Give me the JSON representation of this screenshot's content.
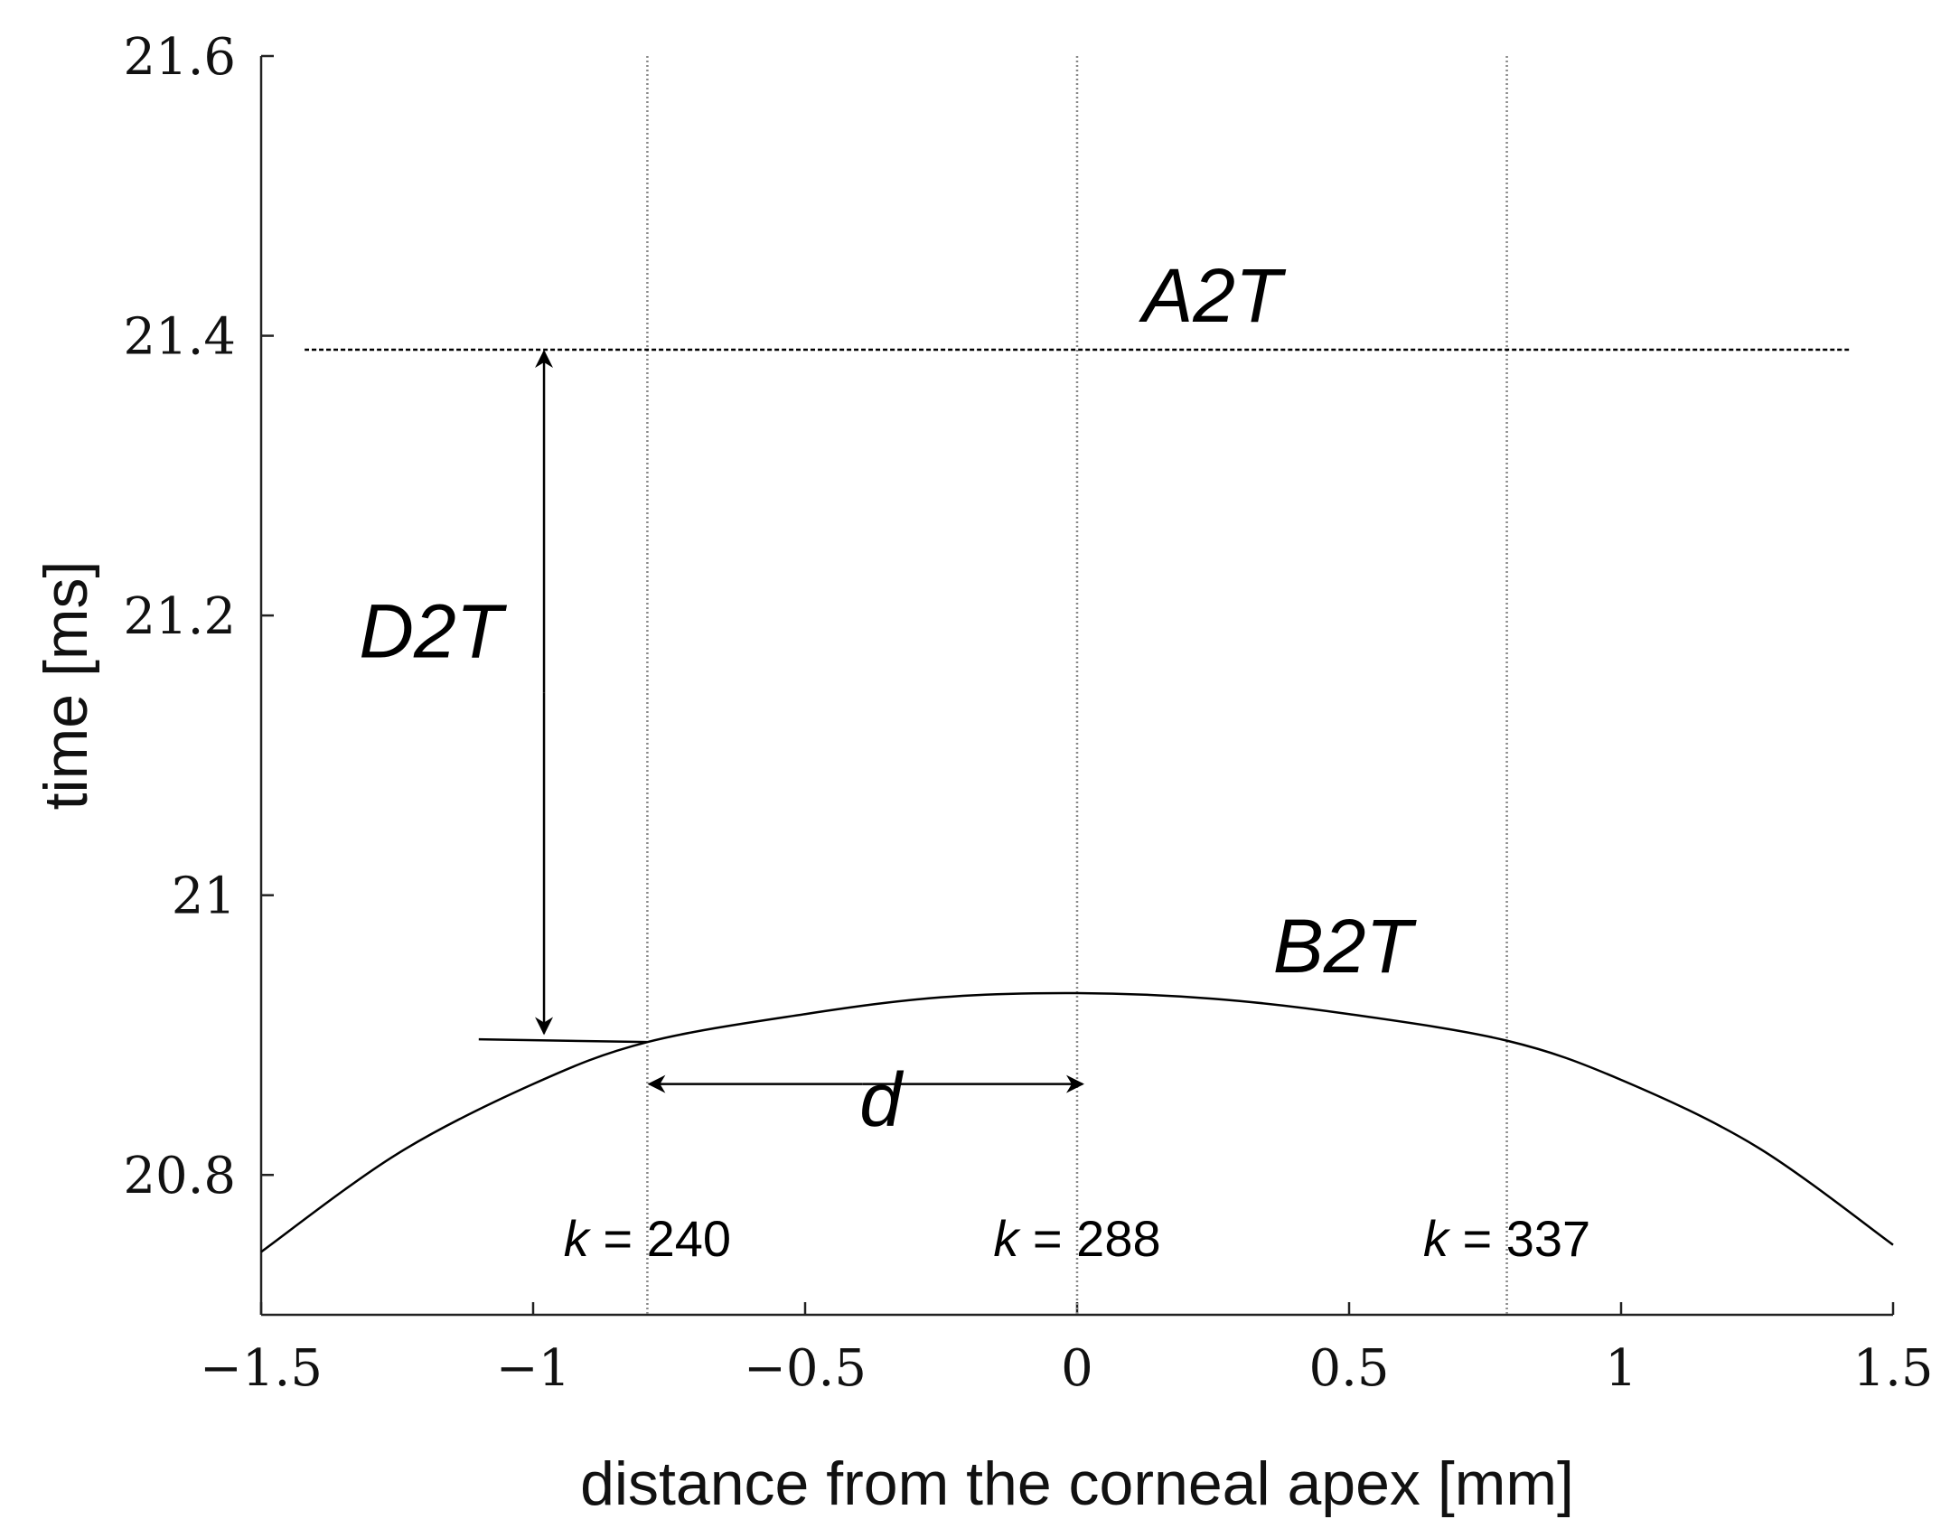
{
  "chart_data": {
    "type": "line",
    "title": "",
    "xlabel": "distance from the corneal apex [mm]",
    "ylabel": "time [ms]",
    "xlim": [
      -1.5,
      1.5
    ],
    "ylim": [
      20.7,
      21.6
    ],
    "x_ticks": [
      -1.5,
      -1,
      -0.5,
      0,
      0.5,
      1,
      1.5
    ],
    "x_tick_labels": [
      "−1.5",
      "−1",
      "−0.5",
      "0",
      "0.5",
      "1",
      "1.5"
    ],
    "y_ticks": [
      20.8,
      21,
      21.2,
      21.4,
      21.6
    ],
    "y_tick_labels": [
      "20.8",
      "21",
      "21.2",
      "21.4",
      "21.6"
    ],
    "grid": false,
    "series": [
      {
        "name": "B2T",
        "x": [
          -1.5,
          -1.25,
          -1.0,
          -0.79,
          -0.5,
          -0.25,
          0.0,
          0.25,
          0.5,
          0.79,
          1.0,
          1.25,
          1.5
        ],
        "y": [
          20.745,
          20.815,
          20.865,
          20.895,
          20.915,
          20.927,
          20.93,
          20.926,
          20.915,
          20.896,
          20.868,
          20.82,
          20.75
        ]
      },
      {
        "name": "A2T",
        "x": [
          -1.42,
          1.42
        ],
        "y": [
          21.39,
          21.39
        ]
      }
    ],
    "vertical_lines": [
      {
        "x": -0.79,
        "label_var": "k",
        "label_rest": " = 240"
      },
      {
        "x": 0.0,
        "label_var": "k",
        "label_rest": " = 288"
      },
      {
        "x": 0.79,
        "label_var": "k",
        "label_rest": " = 337"
      }
    ],
    "annotations": {
      "a2t": "A2T",
      "b2t": "B2T",
      "d2t": "D2T",
      "d": "d"
    }
  }
}
